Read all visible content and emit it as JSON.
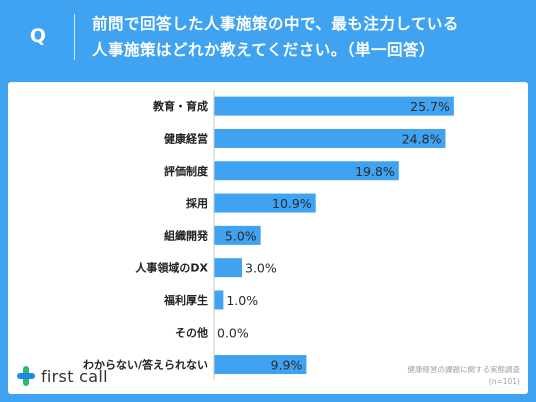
{
  "header": {
    "badge": "Q",
    "question_line1": "前問で回答した人事施策の中で、最も注力している",
    "question_line2": "人事施策はどれか教えてください。（単一回答）"
  },
  "footer": {
    "logo_text": "first call",
    "source_line1": "健康経営の課題に関する実態調査",
    "source_line2": "(n=101)"
  },
  "colors": {
    "frame": "#3fa3f2",
    "bar": "#3fa3f2",
    "label": "#222222",
    "logo_green": "#2bb673",
    "logo_blue": "#1e88e5"
  },
  "chart_data": {
    "type": "bar",
    "orientation": "horizontal",
    "categories": [
      "教育・育成",
      "健康経営",
      "評価制度",
      "採用",
      "組織開発",
      "人事領域のDX",
      "福利厚生",
      "その他",
      "わからない/答えられない"
    ],
    "values": [
      25.7,
      24.8,
      19.8,
      10.9,
      5.0,
      3.0,
      1.0,
      0.0,
      9.9
    ],
    "value_labels": [
      "25.7%",
      "24.8%",
      "19.8%",
      "10.9%",
      "5.0%",
      "3.0%",
      "1.0%",
      "0.0%",
      "9.9%"
    ],
    "xlim": [
      0,
      30
    ],
    "grid": false,
    "title": "",
    "xlabel": "",
    "ylabel": ""
  }
}
